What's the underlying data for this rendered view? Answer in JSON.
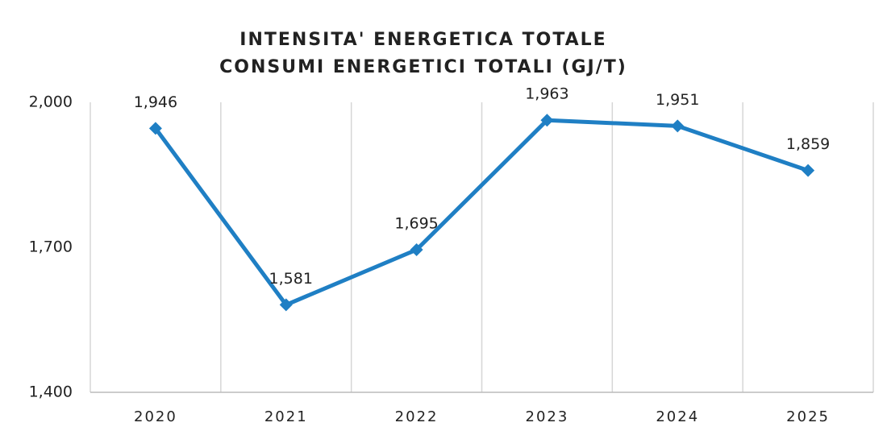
{
  "chart_data": {
    "type": "line",
    "title": "INTENSITA' ENERGETICA TOTALE",
    "subtitle": "CONSUMI ENERGETICI TOTALI (GJ/T)",
    "categories": [
      "2020",
      "2021",
      "2022",
      "2023",
      "2024",
      "2025"
    ],
    "series": [
      {
        "name": "Intensità energetica totale",
        "color": "#1f7fc4",
        "values": [
          1946,
          1581,
          1695,
          1963,
          1951,
          1859
        ],
        "value_labels": [
          "1,946",
          "1,581",
          "1,695",
          "1,963",
          "1,951",
          "1,859"
        ]
      }
    ],
    "ylim": [
      1400,
      2000
    ],
    "yticks": [
      {
        "value": 1400,
        "label": "1,400"
      },
      {
        "value": 1700,
        "label": "1,700"
      },
      {
        "value": 2000,
        "label": "2,000"
      }
    ],
    "grid": false
  }
}
